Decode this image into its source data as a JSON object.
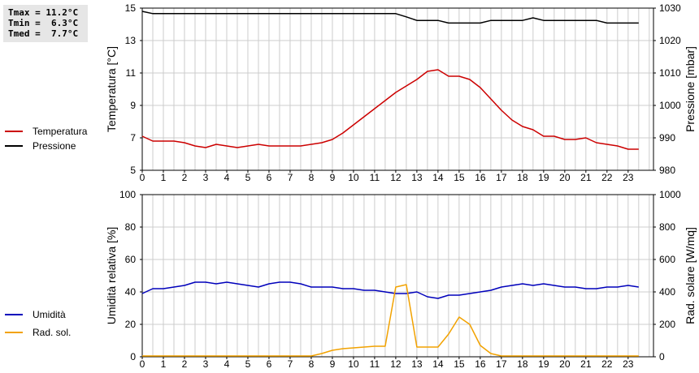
{
  "stats": {
    "tmax": "Tmax = 11.2°C",
    "tmin": "Tmin =  6.3°C",
    "tmed": "Tmed =  7.7°C"
  },
  "colors": {
    "temperature": "#cc0000",
    "pressure": "#000000",
    "humidity": "#0000bb",
    "radiation": "#f2a200",
    "grid": "#cccccc",
    "stats_bg": "#e6e6e6"
  },
  "legend_top": [
    {
      "label": "Temperatura",
      "color": "#cc0000"
    },
    {
      "label": "Pressione",
      "color": "#000000"
    }
  ],
  "legend_bottom": [
    {
      "label": "Umidità",
      "color": "#0000bb"
    },
    {
      "label": "Rad. sol.",
      "color": "#f2a200"
    }
  ],
  "chart_data": [
    {
      "type": "line",
      "grid": true,
      "x_ticks": [
        "0",
        "1",
        "2",
        "3",
        "4",
        "5",
        "6",
        "7",
        "8",
        "9",
        "10",
        "11",
        "12",
        "13",
        "14",
        "15",
        "16",
        "17",
        "18",
        "19",
        "20",
        "21",
        "22",
        "23"
      ],
      "xlim": [
        0,
        24.2
      ],
      "left_axis": {
        "label": "Temperatura [°C]",
        "ylim": [
          5,
          15
        ],
        "ticks": [
          "5",
          "7",
          "9",
          "11",
          "13",
          "15"
        ]
      },
      "right_axis": {
        "label": "Pressione [mbar]",
        "ylim": [
          980,
          1030
        ],
        "ticks": [
          "980",
          "990",
          "1000",
          "1010",
          "1020",
          "1030"
        ]
      },
      "series": [
        {
          "name": "Temperatura",
          "axis": "left",
          "color": "#cc0000",
          "points": [
            [
              0,
              7.1
            ],
            [
              0.5,
              6.8
            ],
            [
              1,
              6.8
            ],
            [
              1.5,
              6.8
            ],
            [
              2,
              6.7
            ],
            [
              2.5,
              6.5
            ],
            [
              3,
              6.4
            ],
            [
              3.5,
              6.6
            ],
            [
              4,
              6.5
            ],
            [
              4.5,
              6.4
            ],
            [
              5,
              6.5
            ],
            [
              5.5,
              6.6
            ],
            [
              6,
              6.5
            ],
            [
              6.5,
              6.5
            ],
            [
              7,
              6.5
            ],
            [
              7.5,
              6.5
            ],
            [
              8,
              6.6
            ],
            [
              8.5,
              6.7
            ],
            [
              9,
              6.9
            ],
            [
              9.5,
              7.3
            ],
            [
              10,
              7.8
            ],
            [
              10.5,
              8.3
            ],
            [
              11,
              8.8
            ],
            [
              11.5,
              9.3
            ],
            [
              12,
              9.8
            ],
            [
              12.5,
              10.2
            ],
            [
              13,
              10.6
            ],
            [
              13.5,
              11.1
            ],
            [
              14,
              11.2
            ],
            [
              14.5,
              10.8
            ],
            [
              15,
              10.8
            ],
            [
              15.5,
              10.6
            ],
            [
              16,
              10.1
            ],
            [
              16.5,
              9.4
            ],
            [
              17,
              8.7
            ],
            [
              17.5,
              8.1
            ],
            [
              18,
              7.7
            ],
            [
              18.5,
              7.5
            ],
            [
              19,
              7.1
            ],
            [
              19.5,
              7.1
            ],
            [
              20,
              6.9
            ],
            [
              20.5,
              6.9
            ],
            [
              21,
              7.0
            ],
            [
              21.5,
              6.7
            ],
            [
              22,
              6.6
            ],
            [
              22.5,
              6.5
            ],
            [
              23,
              6.3
            ],
            [
              23.5,
              6.3
            ]
          ]
        },
        {
          "name": "Pressione",
          "axis": "right",
          "color": "#000000",
          "points": [
            [
              0,
              1029
            ],
            [
              0.5,
              1028.3
            ],
            [
              1,
              1028.3
            ],
            [
              2,
              1028.3
            ],
            [
              3,
              1028.3
            ],
            [
              4,
              1028.3
            ],
            [
              5,
              1028.3
            ],
            [
              6,
              1028.3
            ],
            [
              7,
              1028.3
            ],
            [
              8,
              1028.3
            ],
            [
              9,
              1028.3
            ],
            [
              10,
              1028.3
            ],
            [
              11,
              1028.3
            ],
            [
              12,
              1028.3
            ],
            [
              12.5,
              1027.3
            ],
            [
              13,
              1026.2
            ],
            [
              13.5,
              1026.2
            ],
            [
              14,
              1026.2
            ],
            [
              14.5,
              1025.4
            ],
            [
              15,
              1025.4
            ],
            [
              15.5,
              1025.4
            ],
            [
              16,
              1025.4
            ],
            [
              16.5,
              1026.2
            ],
            [
              17,
              1026.2
            ],
            [
              17.5,
              1026.2
            ],
            [
              18,
              1026.2
            ],
            [
              18.5,
              1027
            ],
            [
              19,
              1026.2
            ],
            [
              19.5,
              1026.2
            ],
            [
              20,
              1026.2
            ],
            [
              20.5,
              1026.2
            ],
            [
              21,
              1026.2
            ],
            [
              21.5,
              1026.2
            ],
            [
              22,
              1025.4
            ],
            [
              22.5,
              1025.4
            ],
            [
              23,
              1025.4
            ],
            [
              23.5,
              1025.4
            ]
          ]
        }
      ]
    },
    {
      "type": "line",
      "grid": true,
      "x_ticks": [
        "0",
        "1",
        "2",
        "3",
        "4",
        "5",
        "6",
        "7",
        "8",
        "9",
        "10",
        "11",
        "12",
        "13",
        "14",
        "15",
        "16",
        "17",
        "18",
        "19",
        "20",
        "21",
        "22",
        "23"
      ],
      "xlim": [
        0,
        24.2
      ],
      "left_axis": {
        "label": "Umidità relativa [%]",
        "ylim": [
          0,
          100
        ],
        "ticks": [
          "0",
          "20",
          "40",
          "60",
          "80",
          "100"
        ]
      },
      "right_axis": {
        "label": "Rad. solare [W/mq]",
        "ylim": [
          0,
          1000
        ],
        "ticks": [
          "0",
          "200",
          "400",
          "600",
          "800",
          "1000"
        ]
      },
      "series": [
        {
          "name": "Umidità",
          "axis": "left",
          "color": "#0000bb",
          "points": [
            [
              0,
              39
            ],
            [
              0.5,
              42
            ],
            [
              1,
              42
            ],
            [
              1.5,
              43
            ],
            [
              2,
              44
            ],
            [
              2.5,
              46
            ],
            [
              3,
              46
            ],
            [
              3.5,
              45
            ],
            [
              4,
              46
            ],
            [
              4.5,
              45
            ],
            [
              5,
              44
            ],
            [
              5.5,
              43
            ],
            [
              6,
              45
            ],
            [
              6.5,
              46
            ],
            [
              7,
              46
            ],
            [
              7.5,
              45
            ],
            [
              8,
              43
            ],
            [
              8.5,
              43
            ],
            [
              9,
              43
            ],
            [
              9.5,
              42
            ],
            [
              10,
              42
            ],
            [
              10.5,
              41
            ],
            [
              11,
              41
            ],
            [
              11.5,
              40
            ],
            [
              12,
              39
            ],
            [
              12.5,
              39
            ],
            [
              13,
              40
            ],
            [
              13.5,
              37
            ],
            [
              14,
              36
            ],
            [
              14.5,
              38
            ],
            [
              15,
              38
            ],
            [
              15.5,
              39
            ],
            [
              16,
              40
            ],
            [
              16.5,
              41
            ],
            [
              17,
              43
            ],
            [
              17.5,
              44
            ],
            [
              18,
              45
            ],
            [
              18.5,
              44
            ],
            [
              19,
              45
            ],
            [
              19.5,
              44
            ],
            [
              20,
              43
            ],
            [
              20.5,
              43
            ],
            [
              21,
              42
            ],
            [
              21.5,
              42
            ],
            [
              22,
              43
            ],
            [
              22.5,
              43
            ],
            [
              23,
              44
            ],
            [
              23.5,
              43
            ]
          ]
        },
        {
          "name": "Rad. sol.",
          "axis": "right",
          "color": "#f2a200",
          "points": [
            [
              0,
              5
            ],
            [
              1,
              5
            ],
            [
              2,
              5
            ],
            [
              3,
              5
            ],
            [
              4,
              5
            ],
            [
              5,
              5
            ],
            [
              6,
              5
            ],
            [
              7,
              5
            ],
            [
              8,
              5
            ],
            [
              8.5,
              20
            ],
            [
              9,
              40
            ],
            [
              9.5,
              50
            ],
            [
              10,
              55
            ],
            [
              10.5,
              60
            ],
            [
              11,
              65
            ],
            [
              11.5,
              65
            ],
            [
              12,
              430
            ],
            [
              12.5,
              445
            ],
            [
              13,
              60
            ],
            [
              13.5,
              60
            ],
            [
              14,
              60
            ],
            [
              14.5,
              140
            ],
            [
              15,
              245
            ],
            [
              15.5,
              200
            ],
            [
              16,
              70
            ],
            [
              16.5,
              20
            ],
            [
              17,
              5
            ],
            [
              18,
              5
            ],
            [
              19,
              5
            ],
            [
              20,
              5
            ],
            [
              21,
              5
            ],
            [
              22,
              5
            ],
            [
              23,
              5
            ],
            [
              23.5,
              5
            ]
          ]
        }
      ]
    }
  ]
}
